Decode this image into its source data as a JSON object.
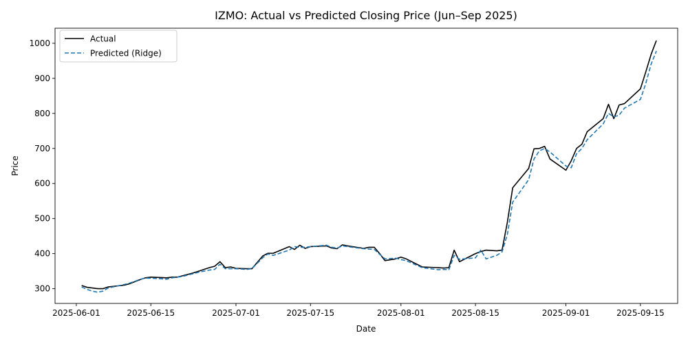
{
  "chart_data": {
    "type": "line",
    "title": "IZMO: Actual vs Predicted Closing Price (Jun–Sep 2025)",
    "xlabel": "Date",
    "ylabel": "Price",
    "x_ticks": [
      "2025-06-01",
      "2025-06-15",
      "2025-07-01",
      "2025-07-15",
      "2025-08-01",
      "2025-08-15",
      "2025-09-01",
      "2025-09-15"
    ],
    "y_ticks": [
      300,
      400,
      500,
      600,
      700,
      800,
      900,
      1000
    ],
    "xlim": [
      "2025-05-28",
      "2025-09-22"
    ],
    "ylim": [
      258,
      1043
    ],
    "legend_position": "top-left",
    "grid": false,
    "series": [
      {
        "name": "Actual",
        "color": "#000000",
        "style": "solid",
        "points": [
          [
            "2025-06-02",
            309
          ],
          [
            "2025-06-03",
            304
          ],
          [
            "2025-06-04",
            302
          ],
          [
            "2025-06-05",
            300
          ],
          [
            "2025-06-06",
            300
          ],
          [
            "2025-06-07",
            305
          ],
          [
            "2025-06-10",
            310
          ],
          [
            "2025-06-11",
            314
          ],
          [
            "2025-06-12",
            320
          ],
          [
            "2025-06-13",
            326
          ],
          [
            "2025-06-14",
            331
          ],
          [
            "2025-06-15",
            333
          ],
          [
            "2025-06-18",
            331
          ],
          [
            "2025-06-19",
            333
          ],
          [
            "2025-06-20",
            333
          ],
          [
            "2025-06-21",
            337
          ],
          [
            "2025-06-23",
            345
          ],
          [
            "2025-06-24",
            350
          ],
          [
            "2025-06-26",
            360
          ],
          [
            "2025-06-27",
            364
          ],
          [
            "2025-06-28",
            377
          ],
          [
            "2025-06-29",
            360
          ],
          [
            "2025-06-30",
            362
          ],
          [
            "2025-07-01",
            358
          ],
          [
            "2025-07-03",
            357
          ],
          [
            "2025-07-04",
            357
          ],
          [
            "2025-07-06",
            393
          ],
          [
            "2025-07-07",
            401
          ],
          [
            "2025-07-08",
            401
          ],
          [
            "2025-07-11",
            420
          ],
          [
            "2025-07-12",
            412
          ],
          [
            "2025-07-13",
            424
          ],
          [
            "2025-07-14",
            415
          ],
          [
            "2025-07-15",
            420
          ],
          [
            "2025-07-18",
            422
          ],
          [
            "2025-07-19",
            416
          ],
          [
            "2025-07-20",
            414
          ],
          [
            "2025-07-21",
            425
          ],
          [
            "2025-07-22",
            422
          ],
          [
            "2025-07-25",
            415
          ],
          [
            "2025-07-26",
            418
          ],
          [
            "2025-07-27",
            418
          ],
          [
            "2025-07-28",
            400
          ],
          [
            "2025-07-29",
            380
          ],
          [
            "2025-07-31",
            385
          ],
          [
            "2025-08-01",
            390
          ],
          [
            "2025-08-02",
            385
          ],
          [
            "2025-08-05",
            362
          ],
          [
            "2025-08-08",
            360
          ],
          [
            "2025-08-09",
            359
          ],
          [
            "2025-08-10",
            360
          ],
          [
            "2025-08-11",
            410
          ],
          [
            "2025-08-12",
            377
          ],
          [
            "2025-08-15",
            400
          ],
          [
            "2025-08-16",
            406
          ],
          [
            "2025-08-17",
            410
          ],
          [
            "2025-08-19",
            408
          ],
          [
            "2025-08-20",
            410
          ],
          [
            "2025-08-21",
            490
          ],
          [
            "2025-08-22",
            588
          ],
          [
            "2025-08-25",
            643
          ],
          [
            "2025-08-26",
            699
          ],
          [
            "2025-08-27",
            700
          ],
          [
            "2025-08-28",
            706
          ],
          [
            "2025-08-29",
            670
          ],
          [
            "2025-09-01",
            638
          ],
          [
            "2025-09-02",
            665
          ],
          [
            "2025-09-03",
            700
          ],
          [
            "2025-09-04",
            712
          ],
          [
            "2025-09-05",
            748
          ],
          [
            "2025-09-08",
            785
          ],
          [
            "2025-09-09",
            826
          ],
          [
            "2025-09-10",
            785
          ],
          [
            "2025-09-11",
            824
          ],
          [
            "2025-09-12",
            828
          ],
          [
            "2025-09-15",
            870
          ],
          [
            "2025-09-16",
            918
          ],
          [
            "2025-09-17",
            968
          ],
          [
            "2025-09-18",
            1008
          ]
        ]
      },
      {
        "name": "Predicted (Ridge)",
        "color": "#1f77b4",
        "style": "dashed",
        "points": [
          [
            "2025-06-02",
            305
          ],
          [
            "2025-06-03",
            298
          ],
          [
            "2025-06-04",
            293
          ],
          [
            "2025-06-05",
            290
          ],
          [
            "2025-06-06",
            293
          ],
          [
            "2025-06-07",
            302
          ],
          [
            "2025-06-10",
            312
          ],
          [
            "2025-06-11",
            316
          ],
          [
            "2025-06-12",
            321
          ],
          [
            "2025-06-13",
            327
          ],
          [
            "2025-06-14",
            330
          ],
          [
            "2025-06-15",
            330
          ],
          [
            "2025-06-18",
            327
          ],
          [
            "2025-06-19",
            331
          ],
          [
            "2025-06-20",
            333
          ],
          [
            "2025-06-21",
            335
          ],
          [
            "2025-06-23",
            343
          ],
          [
            "2025-06-24",
            347
          ],
          [
            "2025-06-26",
            353
          ],
          [
            "2025-06-27",
            355
          ],
          [
            "2025-06-28",
            370
          ],
          [
            "2025-06-29",
            357
          ],
          [
            "2025-06-30",
            357
          ],
          [
            "2025-07-01",
            357
          ],
          [
            "2025-07-03",
            355
          ],
          [
            "2025-07-04",
            357
          ],
          [
            "2025-07-06",
            388
          ],
          [
            "2025-07-07",
            399
          ],
          [
            "2025-07-08",
            395
          ],
          [
            "2025-07-11",
            410
          ],
          [
            "2025-07-12",
            420
          ],
          [
            "2025-07-13",
            418
          ],
          [
            "2025-07-14",
            418
          ],
          [
            "2025-07-15",
            420
          ],
          [
            "2025-07-18",
            424
          ],
          [
            "2025-07-19",
            418
          ],
          [
            "2025-07-20",
            416
          ],
          [
            "2025-07-21",
            422
          ],
          [
            "2025-07-22",
            420
          ],
          [
            "2025-07-25",
            414
          ],
          [
            "2025-07-26",
            413
          ],
          [
            "2025-07-27",
            412
          ],
          [
            "2025-07-28",
            398
          ],
          [
            "2025-07-29",
            385
          ],
          [
            "2025-07-31",
            387
          ],
          [
            "2025-08-01",
            383
          ],
          [
            "2025-08-02",
            380
          ],
          [
            "2025-08-05",
            360
          ],
          [
            "2025-08-08",
            354
          ],
          [
            "2025-08-09",
            355
          ],
          [
            "2025-08-10",
            354
          ],
          [
            "2025-08-11",
            395
          ],
          [
            "2025-08-12",
            384
          ],
          [
            "2025-08-15",
            388
          ],
          [
            "2025-08-16",
            410
          ],
          [
            "2025-08-17",
            385
          ],
          [
            "2025-08-19",
            395
          ],
          [
            "2025-08-20",
            405
          ],
          [
            "2025-08-21",
            455
          ],
          [
            "2025-08-22",
            547
          ],
          [
            "2025-08-25",
            611
          ],
          [
            "2025-08-26",
            670
          ],
          [
            "2025-08-27",
            693
          ],
          [
            "2025-08-28",
            700
          ],
          [
            "2025-08-29",
            690
          ],
          [
            "2025-09-01",
            650
          ],
          [
            "2025-09-02",
            645
          ],
          [
            "2025-09-03",
            685
          ],
          [
            "2025-09-04",
            700
          ],
          [
            "2025-09-05",
            725
          ],
          [
            "2025-09-08",
            770
          ],
          [
            "2025-09-09",
            800
          ],
          [
            "2025-09-10",
            790
          ],
          [
            "2025-09-11",
            795
          ],
          [
            "2025-09-12",
            815
          ],
          [
            "2025-09-15",
            840
          ],
          [
            "2025-09-16",
            885
          ],
          [
            "2025-09-17",
            940
          ],
          [
            "2025-09-18",
            978
          ]
        ]
      }
    ]
  }
}
